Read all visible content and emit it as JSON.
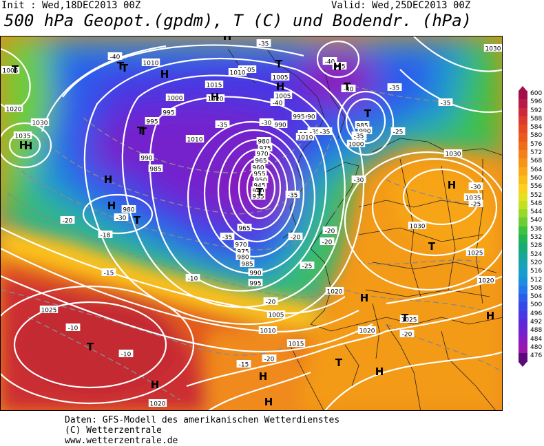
{
  "header": {
    "init": "Init : Wed,18DEC2013 00Z",
    "valid": "Valid: Wed,25DEC2013 00Z",
    "title": "500 hPa Geopot.(gpdm), T (C) und Bodendr. (hPa)"
  },
  "footer": {
    "line1": "Daten: GFS-Modell des amerikanischen Wetterdienstes",
    "line2": "(C) Wetterzentrale",
    "line3": "www.wetterzentrale.de"
  },
  "legend": {
    "labels": [
      "600",
      "596",
      "592",
      "588",
      "584",
      "580",
      "576",
      "572",
      "568",
      "564",
      "560",
      "556",
      "552",
      "548",
      "544",
      "540",
      "536",
      "532",
      "528",
      "524",
      "520",
      "516",
      "512",
      "508",
      "504",
      "500",
      "496",
      "492",
      "488",
      "484",
      "480",
      "476"
    ],
    "colors": [
      "#a0104a",
      "#b81c46",
      "#cc2a3a",
      "#dc3a2c",
      "#e54a22",
      "#ea5a1c",
      "#ef6c18",
      "#f38018",
      "#f79418",
      "#f9a81a",
      "#fbbc1c",
      "#fbd01e",
      "#e6e020",
      "#c2e024",
      "#98d82a",
      "#6cce34",
      "#3cc23e",
      "#20b454",
      "#18ac74",
      "#16a894",
      "#18a4b4",
      "#1a9ccc",
      "#1c8ee0",
      "#2476ea",
      "#2c5cec",
      "#3848e8",
      "#4a36e2",
      "#5e28d8",
      "#7420cc",
      "#8a1abe",
      "#9c16ae",
      "#5a0a7a"
    ],
    "pressure_markers": [
      "T",
      "H"
    ]
  },
  "map": {
    "pressure_labels": [
      "1005",
      "1010",
      "1015",
      "1020",
      "1025",
      "1030",
      "1035",
      "1000",
      "995",
      "990",
      "985",
      "980",
      "975",
      "970",
      "965",
      "960",
      "955",
      "950",
      "945",
      "940",
      "935"
    ],
    "temp_labels": [
      "-10",
      "-15",
      "-18",
      "-20",
      "-25",
      "-30",
      "-35",
      "-40"
    ],
    "labels": [
      {
        "t": "1005"
      },
      {
        "t": "1020"
      },
      {
        "t": "1030"
      },
      {
        "t": "1035"
      },
      {
        "t": "-40"
      },
      {
        "t": "1010"
      },
      {
        "t": "1005"
      },
      {
        "t": "1000"
      },
      {
        "t": "995"
      },
      {
        "t": "995"
      },
      {
        "t": "1010"
      },
      {
        "t": "990"
      },
      {
        "t": "985"
      },
      {
        "t": "1015"
      },
      {
        "t": "1020"
      },
      {
        "t": "1010"
      },
      {
        "t": "-35"
      },
      {
        "t": "-35"
      },
      {
        "t": "1005"
      },
      {
        "t": "1005"
      },
      {
        "t": "990"
      },
      {
        "t": "995"
      },
      {
        "t": "-40"
      },
      {
        "t": "-30"
      },
      {
        "t": "-35"
      },
      {
        "t": "-35"
      },
      {
        "t": "-40"
      },
      {
        "t": "995"
      },
      {
        "t": "990"
      },
      {
        "t": "985"
      },
      {
        "t": "-30"
      },
      {
        "t": "-35"
      },
      {
        "t": "-35"
      },
      {
        "t": "985"
      },
      {
        "t": "990"
      },
      {
        "t": "995"
      },
      {
        "t": "1000"
      },
      {
        "t": "-25"
      },
      {
        "t": "1030"
      },
      {
        "t": "980"
      },
      {
        "t": "975"
      },
      {
        "t": "970"
      },
      {
        "t": "965"
      },
      {
        "t": "960"
      },
      {
        "t": "955"
      },
      {
        "t": "950"
      },
      {
        "t": "945"
      },
      {
        "t": "940"
      },
      {
        "t": "935"
      },
      {
        "t": "-35"
      },
      {
        "t": "-20"
      },
      {
        "t": "980"
      },
      {
        "t": "-30"
      },
      {
        "t": "-18"
      },
      {
        "t": "965"
      },
      {
        "t": "-35"
      },
      {
        "t": "970"
      },
      {
        "t": "975"
      },
      {
        "t": "980"
      },
      {
        "t": "985"
      },
      {
        "t": "990"
      },
      {
        "t": "995"
      },
      {
        "t": "-15"
      },
      {
        "t": "-10"
      },
      {
        "t": "-20"
      },
      {
        "t": "-20"
      },
      {
        "t": "-20"
      },
      {
        "t": "1035"
      },
      {
        "t": "-30"
      },
      {
        "t": "-25"
      },
      {
        "t": "1030"
      },
      {
        "t": "1025"
      },
      {
        "t": "1020"
      },
      {
        "t": "-25"
      },
      {
        "t": "1005"
      },
      {
        "t": "-20"
      },
      {
        "t": "1010"
      },
      {
        "t": "1015"
      },
      {
        "t": "1020"
      },
      {
        "t": "-20"
      },
      {
        "t": "1025"
      },
      {
        "t": "-10"
      },
      {
        "t": "-10"
      },
      {
        "t": "-15"
      },
      {
        "t": "1020"
      },
      {
        "t": "1025"
      },
      {
        "t": "1020"
      },
      {
        "t": "-20"
      },
      {
        "t": "1010"
      },
      {
        "t": "-35"
      },
      {
        "t": "-30"
      },
      {
        "t": "1030"
      },
      {
        "t": "-20"
      }
    ],
    "markers": [
      {
        "t": "T"
      },
      {
        "t": "H"
      },
      {
        "t": "H"
      },
      {
        "t": "H"
      },
      {
        "t": "T"
      },
      {
        "t": "H"
      },
      {
        "t": "H"
      },
      {
        "t": "T"
      },
      {
        "t": "T"
      },
      {
        "t": "H"
      },
      {
        "t": "T"
      },
      {
        "t": "T"
      },
      {
        "t": "H"
      },
      {
        "t": "H"
      },
      {
        "t": "T"
      },
      {
        "t": "T"
      },
      {
        "t": "H"
      },
      {
        "t": "T"
      },
      {
        "t": "H"
      },
      {
        "t": "T"
      },
      {
        "t": "H"
      },
      {
        "t": "T"
      },
      {
        "t": "H"
      },
      {
        "t": "H"
      },
      {
        "t": "H"
      },
      {
        "t": "T"
      },
      {
        "t": "H"
      },
      {
        "t": "H"
      },
      {
        "t": "T"
      },
      {
        "t": "T"
      }
    ]
  }
}
